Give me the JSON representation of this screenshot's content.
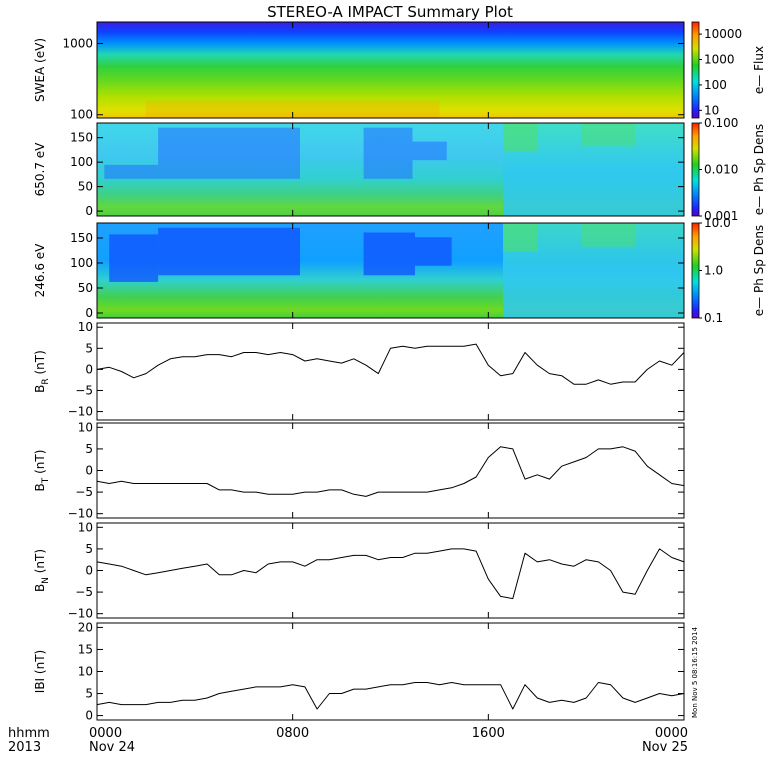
{
  "title": "STEREO-A IMPACT Summary Plot",
  "time_axis": {
    "corner_labels": [
      "hhmm",
      "2013"
    ],
    "ticks": [
      {
        "hhmm": "0000",
        "date": "Nov 24",
        "hour": 0
      },
      {
        "hhmm": "0800",
        "date": "",
        "hour": 8
      },
      {
        "hhmm": "1600",
        "date": "",
        "hour": 16
      },
      {
        "hhmm": "0000",
        "date": "Nov 25",
        "hour": 24
      }
    ],
    "range_hours": [
      0,
      24
    ]
  },
  "timestamp": "Mon Nov  5 08:16:15 2014",
  "colors": {
    "trace": "#000000",
    "frame": "#000000"
  },
  "chart_data": [
    {
      "type": "heatmap",
      "ylabel": "SWEA (eV)",
      "yscale": "log",
      "ylim": [
        90,
        2000
      ],
      "yticks": [
        {
          "value": 100,
          "label": "100"
        },
        {
          "value": 1000,
          "label": "1000"
        }
      ],
      "colorbar": {
        "label": "e— Flux",
        "scale": "log",
        "range": [
          5,
          30000
        ],
        "ticks": [
          {
            "value": 10,
            "label": "10"
          },
          {
            "value": 100,
            "label": "100"
          },
          {
            "value": 1000,
            "label": "1000"
          },
          {
            "value": 10000,
            "label": "10000"
          }
        ]
      },
      "profile": {
        "description_energy_eV": [
          90,
          120,
          200,
          400,
          700,
          1000,
          1500,
          2000
        ],
        "log_flux": [
          3.9,
          3.8,
          3.4,
          3.0,
          2.6,
          2.0,
          1.2,
          0.8
        ]
      }
    },
    {
      "type": "heatmap",
      "ylabel": "650.7 eV",
      "ylim": [
        -10,
        180
      ],
      "yticks": [
        {
          "value": 0,
          "label": "0"
        },
        {
          "value": 50,
          "label": "50"
        },
        {
          "value": 100,
          "label": "100"
        },
        {
          "value": 150,
          "label": "150"
        }
      ],
      "colorbar": {
        "label": "e— Ph Sp Dens",
        "scale": "log",
        "range": [
          0.001,
          0.1
        ],
        "ticks": [
          {
            "value": 0.001,
            "label": "0.001"
          },
          {
            "value": 0.01,
            "label": "0.010"
          },
          {
            "value": 0.1,
            "label": "0.100"
          }
        ]
      }
    },
    {
      "type": "heatmap",
      "ylabel": "246.6 eV",
      "ylim": [
        -10,
        180
      ],
      "yticks": [
        {
          "value": 0,
          "label": "0"
        },
        {
          "value": 50,
          "label": "50"
        },
        {
          "value": 100,
          "label": "100"
        },
        {
          "value": 150,
          "label": "150"
        }
      ],
      "colorbar": {
        "label": "e— Ph Sp Dens",
        "scale": "log",
        "range": [
          0.1,
          10
        ],
        "ticks": [
          {
            "value": 0.1,
            "label": "0.1"
          },
          {
            "value": 1,
            "label": "1.0"
          },
          {
            "value": 10,
            "label": "10.0"
          }
        ]
      }
    },
    {
      "type": "line",
      "ylabel": "B",
      "ylabel_sub": "R",
      "ylabel_unit": "(nT)",
      "ylim": [
        -12,
        11
      ],
      "yticks": [
        {
          "value": -10,
          "label": "−10"
        },
        {
          "value": -5,
          "label": "−5"
        },
        {
          "value": 0,
          "label": "0"
        },
        {
          "value": 5,
          "label": "5"
        },
        {
          "value": 10,
          "label": "10"
        }
      ],
      "x": [
        0,
        0.5,
        1,
        1.5,
        2,
        2.5,
        3,
        3.5,
        4,
        4.5,
        5,
        5.5,
        6,
        6.5,
        7,
        7.5,
        8,
        8.5,
        9,
        9.5,
        10,
        10.5,
        11,
        11.5,
        12,
        12.5,
        13,
        13.5,
        14,
        14.5,
        15,
        15.5,
        16,
        16.5,
        17,
        17.5,
        18,
        18.5,
        19,
        19.5,
        20,
        20.5,
        21,
        21.5,
        22,
        22.5,
        23,
        23.5,
        24
      ],
      "values": [
        0,
        0.5,
        -0.5,
        -2,
        -1,
        1,
        2.5,
        3,
        3,
        3.5,
        3.5,
        3,
        4,
        4,
        3.5,
        4,
        3.5,
        2,
        2.5,
        2,
        1.5,
        2.5,
        1,
        -1,
        5,
        5.5,
        5,
        5.5,
        5.5,
        5.5,
        5.5,
        6,
        1,
        -1.5,
        -1,
        4,
        1,
        -1,
        -1.5,
        -3.5,
        -3.5,
        -2.5,
        -3.5,
        -3,
        -3,
        0,
        2,
        1,
        4
      ]
    },
    {
      "type": "line",
      "ylabel": "B",
      "ylabel_sub": "T",
      "ylabel_unit": "(nT)",
      "ylim": [
        -11,
        11
      ],
      "yticks": [
        {
          "value": -10,
          "label": "−10"
        },
        {
          "value": -5,
          "label": "−5"
        },
        {
          "value": 0,
          "label": "0"
        },
        {
          "value": 5,
          "label": "5"
        },
        {
          "value": 10,
          "label": "10"
        }
      ],
      "x": [
        0,
        0.5,
        1,
        1.5,
        2,
        2.5,
        3,
        3.5,
        4,
        4.5,
        5,
        5.5,
        6,
        6.5,
        7,
        7.5,
        8,
        8.5,
        9,
        9.5,
        10,
        10.5,
        11,
        11.5,
        12,
        12.5,
        13,
        13.5,
        14,
        14.5,
        15,
        15.5,
        16,
        16.5,
        17,
        17.5,
        18,
        18.5,
        19,
        19.5,
        20,
        20.5,
        21,
        21.5,
        22,
        22.5,
        23,
        23.5,
        24
      ],
      "values": [
        -2.5,
        -3,
        -2.5,
        -3,
        -3,
        -3,
        -3,
        -3,
        -3,
        -3,
        -4.5,
        -4.5,
        -5,
        -5,
        -5.5,
        -5.5,
        -5.5,
        -5,
        -5,
        -4.5,
        -4.5,
        -5.5,
        -6,
        -5,
        -5,
        -5,
        -5,
        -5,
        -4.5,
        -4,
        -3,
        -1.5,
        3,
        5.5,
        5,
        -2,
        -1,
        -2,
        1,
        2,
        3,
        5,
        5,
        5.5,
        4.5,
        1,
        -1,
        -3,
        -3.5
      ]
    },
    {
      "type": "line",
      "ylabel": "B",
      "ylabel_sub": "N",
      "ylabel_unit": "(nT)",
      "ylim": [
        -11,
        11
      ],
      "yticks": [
        {
          "value": -10,
          "label": "−10"
        },
        {
          "value": -5,
          "label": "−5"
        },
        {
          "value": 0,
          "label": "0"
        },
        {
          "value": 5,
          "label": "5"
        },
        {
          "value": 10,
          "label": "10"
        }
      ],
      "x": [
        0,
        0.5,
        1,
        1.5,
        2,
        2.5,
        3,
        3.5,
        4,
        4.5,
        5,
        5.5,
        6,
        6.5,
        7,
        7.5,
        8,
        8.5,
        9,
        9.5,
        10,
        10.5,
        11,
        11.5,
        12,
        12.5,
        13,
        13.5,
        14,
        14.5,
        15,
        15.5,
        16,
        16.5,
        17,
        17.5,
        18,
        18.5,
        19,
        19.5,
        20,
        20.5,
        21,
        21.5,
        22,
        22.5,
        23,
        23.5,
        24
      ],
      "values": [
        2,
        1.5,
        1,
        0,
        -1,
        -0.5,
        0,
        0.5,
        1,
        1.5,
        -1,
        -1,
        0,
        -0.5,
        1.5,
        2,
        2,
        1,
        2.5,
        2.5,
        3,
        3.5,
        3.5,
        2.5,
        3,
        3,
        4,
        4,
        4.5,
        5,
        5,
        4.5,
        -2,
        -6,
        -6.5,
        4,
        2,
        2.5,
        1.5,
        1,
        2.5,
        2,
        0,
        -5,
        -5.5,
        0,
        5,
        3,
        2
      ]
    },
    {
      "type": "line",
      "ylabel": "IBI",
      "ylabel_sub": "",
      "ylabel_unit": "(nT)",
      "ylim": [
        -1,
        21
      ],
      "yticks": [
        {
          "value": 0,
          "label": "0"
        },
        {
          "value": 5,
          "label": "5"
        },
        {
          "value": 10,
          "label": "10"
        },
        {
          "value": 15,
          "label": "15"
        },
        {
          "value": 20,
          "label": "20"
        }
      ],
      "x": [
        0,
        0.5,
        1,
        1.5,
        2,
        2.5,
        3,
        3.5,
        4,
        4.5,
        5,
        5.5,
        6,
        6.5,
        7,
        7.5,
        8,
        8.5,
        9,
        9.5,
        10,
        10.5,
        11,
        11.5,
        12,
        12.5,
        13,
        13.5,
        14,
        14.5,
        15,
        15.5,
        16,
        16.5,
        17,
        17.5,
        18,
        18.5,
        19,
        19.5,
        20,
        20.5,
        21,
        21.5,
        22,
        22.5,
        23,
        23.5,
        24
      ],
      "values": [
        2.5,
        3,
        2.5,
        2.5,
        2.5,
        3,
        3,
        3.5,
        3.5,
        4,
        5,
        5.5,
        6,
        6.5,
        6.5,
        6.5,
        7,
        6.5,
        1.5,
        5,
        5,
        6,
        6,
        6.5,
        7,
        7,
        7.5,
        7.5,
        7,
        7.5,
        7,
        7,
        7,
        7,
        1.5,
        7,
        4,
        3,
        3.5,
        3,
        4,
        7.5,
        7,
        4,
        3,
        4,
        5,
        4.5,
        5
      ]
    }
  ]
}
